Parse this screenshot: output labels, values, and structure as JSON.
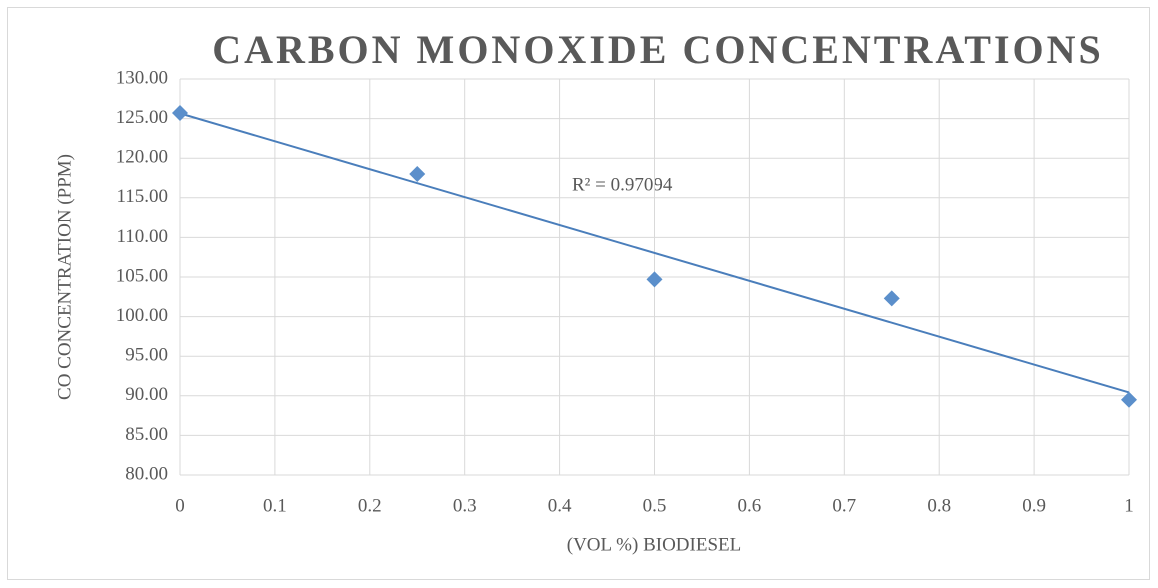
{
  "chart_data": {
    "type": "scatter",
    "title": "CARBON MONOXIDE CONCENTRATIONS",
    "x_label": "(VOL %) BIODIESEL",
    "y_label": "CO CONCENTRATION (PPM)",
    "annotation": "R² = 0.97094",
    "series": [
      {
        "name": "CO",
        "color": "#5b8fcb",
        "x": [
          0,
          0.25,
          0.5,
          0.75,
          1
        ],
        "values": [
          125.7,
          118.0,
          104.7,
          102.3,
          89.5
        ]
      }
    ],
    "trendline": {
      "type": "linear",
      "color": "#4a7ebb"
    },
    "xlim": [
      0,
      1
    ],
    "xticks": [
      0,
      0.1,
      0.2,
      0.3,
      0.4,
      0.5,
      0.6,
      0.7,
      0.8,
      0.9,
      1
    ],
    "ylim": [
      80,
      130
    ],
    "yticks": [
      {
        "value": 80,
        "label": "80.00"
      },
      {
        "value": 85,
        "label": "85.00"
      },
      {
        "value": 90,
        "label": "90.00"
      },
      {
        "value": 95,
        "label": "95.00"
      },
      {
        "value": 100,
        "label": "100.00"
      },
      {
        "value": 105,
        "label": "105.00"
      },
      {
        "value": 110,
        "label": "110.00"
      },
      {
        "value": 115,
        "label": "115.00"
      },
      {
        "value": 120,
        "label": "120.00"
      },
      {
        "value": 125,
        "label": "125.00"
      },
      {
        "value": 130,
        "label": "130.00"
      }
    ],
    "grid": true
  }
}
